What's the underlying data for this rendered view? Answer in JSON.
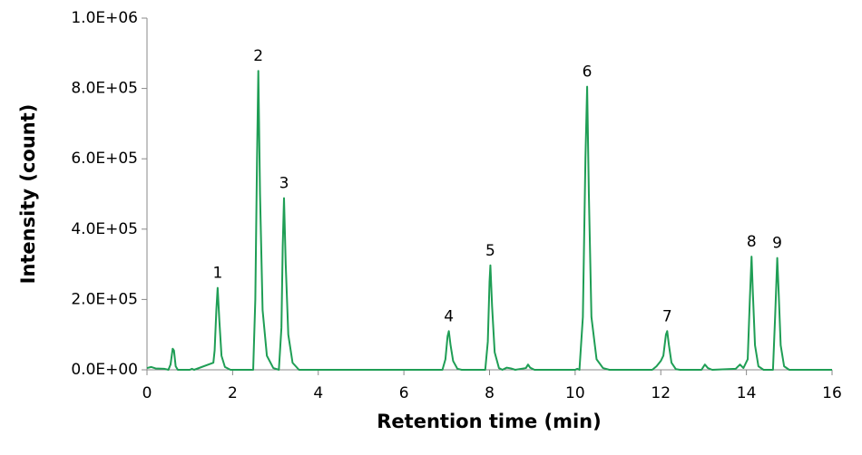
{
  "chart_data": {
    "type": "line",
    "xlabel": "Retention time (min)",
    "ylabel": "Intensity (count)",
    "xlim": [
      0,
      16
    ],
    "xticks": [
      0,
      2,
      4,
      6,
      8,
      10,
      12,
      14,
      16
    ],
    "ylim": [
      0,
      1000000
    ],
    "yticks": [
      {
        "value": 0,
        "label": "0.0E+00"
      },
      {
        "value": 200000,
        "label": "2.0E+05"
      },
      {
        "value": 400000,
        "label": "4.0E+05"
      },
      {
        "value": 600000,
        "label": "6.0E+05"
      },
      {
        "value": 800000,
        "label": "8.0E+05"
      },
      {
        "value": 1000000,
        "label": "1.0E+06"
      }
    ],
    "x": [
      0,
      0.1,
      0.2,
      0.4,
      0.5,
      0.55,
      0.6,
      0.63,
      0.67,
      0.72,
      1.0,
      1.05,
      1.1,
      1.55,
      1.58,
      1.62,
      1.65,
      1.69,
      1.74,
      1.82,
      1.95,
      2.48,
      2.53,
      2.57,
      2.6,
      2.64,
      2.7,
      2.8,
      2.95,
      3.08,
      3.14,
      3.17,
      3.2,
      3.24,
      3.3,
      3.4,
      3.55,
      6.9,
      6.97,
      7.02,
      7.05,
      7.09,
      7.15,
      7.25,
      7.35,
      7.9,
      7.96,
      8.0,
      8.02,
      8.06,
      8.12,
      8.22,
      8.3,
      8.4,
      8.5,
      8.6,
      8.85,
      8.9,
      8.95,
      9.05,
      10.0,
      10.05,
      10.1,
      10.18,
      10.24,
      10.28,
      10.32,
      10.38,
      10.5,
      10.65,
      10.8,
      11.8,
      11.9,
      12.0,
      12.06,
      12.12,
      12.15,
      12.19,
      12.25,
      12.35,
      12.45,
      12.95,
      13.03,
      13.1,
      13.2,
      13.75,
      13.85,
      13.93,
      14.03,
      14.08,
      14.12,
      14.15,
      14.2,
      14.28,
      14.4,
      14.62,
      14.67,
      14.72,
      14.75,
      14.8,
      14.88,
      15.0,
      16
    ],
    "series": [
      {
        "color": "#1f9e55",
        "values": [
          5000,
          8000,
          4000,
          3000,
          0,
          15000,
          60000,
          55000,
          10000,
          0,
          0,
          3000,
          0,
          20000,
          55000,
          170000,
          233000,
          140000,
          40000,
          8000,
          0,
          0,
          200000,
          600000,
          850000,
          500000,
          170000,
          40000,
          5000,
          0,
          120000,
          350000,
          488000,
          300000,
          100000,
          20000,
          0,
          0,
          30000,
          95000,
          110000,
          70000,
          25000,
          3000,
          0,
          0,
          80000,
          250000,
          297000,
          180000,
          50000,
          5000,
          0,
          6000,
          4000,
          0,
          5000,
          15000,
          6000,
          0,
          0,
          3000,
          0,
          150000,
          600000,
          805000,
          500000,
          150000,
          30000,
          5000,
          0,
          0,
          10000,
          25000,
          40000,
          100000,
          110000,
          70000,
          20000,
          2000,
          0,
          0,
          15000,
          5000,
          0,
          3000,
          15000,
          5000,
          30000,
          200000,
          322000,
          220000,
          70000,
          10000,
          0,
          0,
          150000,
          318000,
          230000,
          70000,
          10000,
          0,
          0
        ]
      }
    ],
    "annotations": [
      {
        "text": "1",
        "x": 1.65,
        "y": 233000
      },
      {
        "text": "2",
        "x": 2.6,
        "y": 850000
      },
      {
        "text": "3",
        "x": 3.2,
        "y": 488000
      },
      {
        "text": "4",
        "x": 7.05,
        "y": 110000
      },
      {
        "text": "5",
        "x": 8.02,
        "y": 297000
      },
      {
        "text": "6",
        "x": 10.28,
        "y": 805000
      },
      {
        "text": "7",
        "x": 12.15,
        "y": 110000
      },
      {
        "text": "8",
        "x": 14.12,
        "y": 322000
      },
      {
        "text": "9",
        "x": 14.72,
        "y": 318000
      }
    ]
  }
}
